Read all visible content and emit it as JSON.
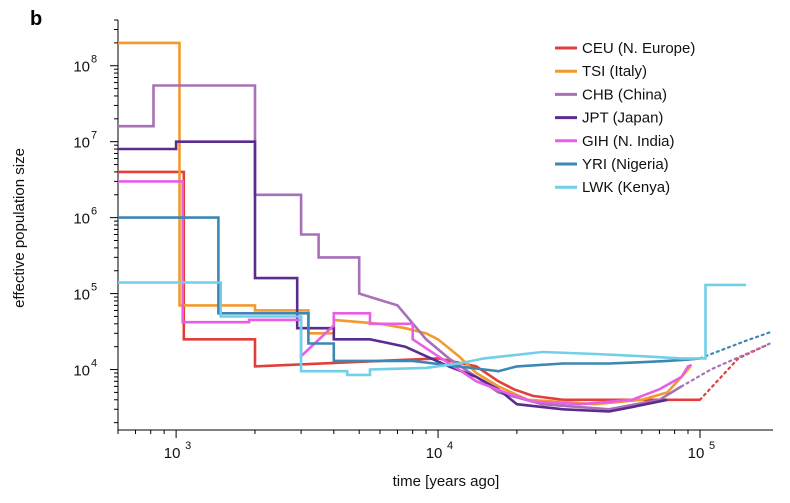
{
  "panel_label": "b",
  "chart_data": {
    "type": "line",
    "step": true,
    "xlabel": "time [years ago]",
    "ylabel": "effective population size",
    "xscale": "log",
    "yscale": "log",
    "xlim": [
      600,
      190000
    ],
    "ylim": [
      1600,
      400000000
    ],
    "xticks": [
      {
        "value": 1000,
        "base": "10",
        "exp": "3"
      },
      {
        "value": 10000,
        "base": "10",
        "exp": "4"
      },
      {
        "value": 100000,
        "base": "10",
        "exp": "5"
      }
    ],
    "yticks": [
      {
        "value": 10000,
        "base": "10",
        "exp": "4"
      },
      {
        "value": 100000,
        "base": "10",
        "exp": "5"
      },
      {
        "value": 1000000,
        "base": "10",
        "exp": "6"
      },
      {
        "value": 10000000,
        "base": "10",
        "exp": "7"
      },
      {
        "value": 100000000,
        "base": "10",
        "exp": "8"
      }
    ],
    "legend_position": "top-right",
    "series": [
      {
        "name": "CEU (N. Europe)",
        "color": "#e0403a",
        "points": [
          [
            600,
            4000000
          ],
          [
            1070,
            4000000
          ],
          [
            1070,
            25000
          ],
          [
            2000,
            25000
          ],
          [
            2000,
            11000
          ],
          [
            6000,
            13000
          ],
          [
            10000,
            14000
          ],
          [
            14000,
            11000
          ],
          [
            17000,
            7000
          ],
          [
            19500,
            5500
          ],
          [
            23000,
            4500
          ],
          [
            30000,
            4000
          ],
          [
            60000,
            4000
          ],
          [
            100000,
            4000
          ]
        ],
        "dotted": [
          [
            140000,
            14000
          ],
          [
            180000,
            21000
          ]
        ]
      },
      {
        "name": "TSI (Italy)",
        "color": "#f29a2e",
        "points": [
          [
            600,
            200000000
          ],
          [
            1030,
            200000000
          ],
          [
            1030,
            70000
          ],
          [
            2000,
            70000
          ],
          [
            2000,
            60000
          ],
          [
            3200,
            60000
          ],
          [
            3200,
            30000
          ],
          [
            4000,
            30000
          ],
          [
            4000,
            45000
          ],
          [
            6000,
            40000
          ],
          [
            7500,
            35000
          ],
          [
            9000,
            30000
          ],
          [
            10000,
            25000
          ],
          [
            12000,
            15000
          ],
          [
            14000,
            9000
          ],
          [
            17000,
            6000
          ],
          [
            22000,
            4000
          ],
          [
            40000,
            3500
          ],
          [
            60000,
            4000
          ],
          [
            75000,
            5000
          ],
          [
            85000,
            8000
          ],
          [
            92000,
            11000
          ]
        ],
        "dotted": []
      },
      {
        "name": "CHB (China)",
        "color": "#a870b8",
        "points": [
          [
            600,
            16000000
          ],
          [
            820,
            16000000
          ],
          [
            820,
            55000000
          ],
          [
            2000,
            55000000
          ],
          [
            2000,
            2000000
          ],
          [
            3000,
            2000000
          ],
          [
            3000,
            600000
          ],
          [
            3500,
            600000
          ],
          [
            3500,
            300000
          ],
          [
            5000,
            300000
          ],
          [
            5000,
            100000
          ],
          [
            7000,
            70000
          ],
          [
            9000,
            25000
          ],
          [
            11000,
            14000
          ],
          [
            14000,
            8000
          ],
          [
            17000,
            5000
          ],
          [
            25000,
            3500
          ],
          [
            45000,
            3000
          ],
          [
            70000,
            4000
          ],
          [
            85000,
            6000
          ]
        ],
        "dotted": [
          [
            110000,
            10000
          ],
          [
            150000,
            16000
          ],
          [
            185000,
            22000
          ]
        ]
      },
      {
        "name": "JPT (Japan)",
        "color": "#5a2c8e",
        "points": [
          [
            600,
            8000000
          ],
          [
            1000,
            8000000
          ],
          [
            1000,
            10000000
          ],
          [
            2000,
            10000000
          ],
          [
            2000,
            160000
          ],
          [
            2900,
            160000
          ],
          [
            2900,
            35000
          ],
          [
            4000,
            35000
          ],
          [
            4000,
            25000
          ],
          [
            5500,
            25000
          ],
          [
            7500,
            20000
          ],
          [
            9000,
            15000
          ],
          [
            11000,
            11000
          ],
          [
            14000,
            8000
          ],
          [
            17000,
            5500
          ],
          [
            20000,
            3500
          ],
          [
            30000,
            3000
          ],
          [
            45000,
            2800
          ],
          [
            55000,
            3200
          ],
          [
            75000,
            4000
          ]
        ],
        "dotted": []
      },
      {
        "name": "GIH (N. India)",
        "color": "#e85fe6",
        "points": [
          [
            600,
            3000000
          ],
          [
            1060,
            3000000
          ],
          [
            1060,
            42000
          ],
          [
            1900,
            42000
          ],
          [
            1900,
            45000
          ],
          [
            3000,
            45000
          ],
          [
            3000,
            15000
          ],
          [
            4000,
            38000
          ],
          [
            4000,
            55000
          ],
          [
            5500,
            55000
          ],
          [
            5500,
            40000
          ],
          [
            8000,
            40000
          ],
          [
            8000,
            25000
          ],
          [
            10000,
            15000
          ],
          [
            12000,
            10000
          ],
          [
            14000,
            7000
          ],
          [
            18000,
            5000
          ],
          [
            23000,
            3800
          ],
          [
            35000,
            3500
          ],
          [
            55000,
            4000
          ],
          [
            70000,
            5500
          ],
          [
            85000,
            8000
          ],
          [
            90000,
            11000
          ],
          [
            93000,
            11500
          ]
        ],
        "dotted": []
      },
      {
        "name": "YRI (Nigeria)",
        "color": "#3d87b5",
        "points": [
          [
            600,
            1000000
          ],
          [
            1450,
            1000000
          ],
          [
            1450,
            55000
          ],
          [
            3200,
            55000
          ],
          [
            3200,
            22000
          ],
          [
            4000,
            22000
          ],
          [
            4000,
            13000
          ],
          [
            8000,
            13000
          ],
          [
            15000,
            10000
          ],
          [
            17000,
            9500
          ],
          [
            20000,
            11000
          ],
          [
            30000,
            12000
          ],
          [
            45000,
            12000
          ],
          [
            60000,
            12500
          ],
          [
            75000,
            13000
          ],
          [
            90000,
            13500
          ],
          [
            100000,
            14000
          ]
        ],
        "dotted": [
          [
            105000,
            15000
          ],
          [
            150000,
            24000
          ],
          [
            190000,
            32000
          ]
        ]
      },
      {
        "name": "LWK (Kenya)",
        "color": "#72cfe9",
        "points": [
          [
            600,
            140000
          ],
          [
            1480,
            140000
          ],
          [
            1480,
            50000
          ],
          [
            3000,
            50000
          ],
          [
            3000,
            9500
          ],
          [
            4500,
            9500
          ],
          [
            4500,
            8500
          ],
          [
            5500,
            8500
          ],
          [
            5500,
            10000
          ],
          [
            9000,
            10500
          ],
          [
            12000,
            12000
          ],
          [
            15000,
            14000
          ],
          [
            25000,
            17000
          ],
          [
            40000,
            16000
          ],
          [
            60000,
            15000
          ],
          [
            85000,
            14000
          ],
          [
            105000,
            14000
          ],
          [
            105000,
            130000
          ],
          [
            150000,
            130000
          ]
        ],
        "dotted": []
      }
    ]
  }
}
